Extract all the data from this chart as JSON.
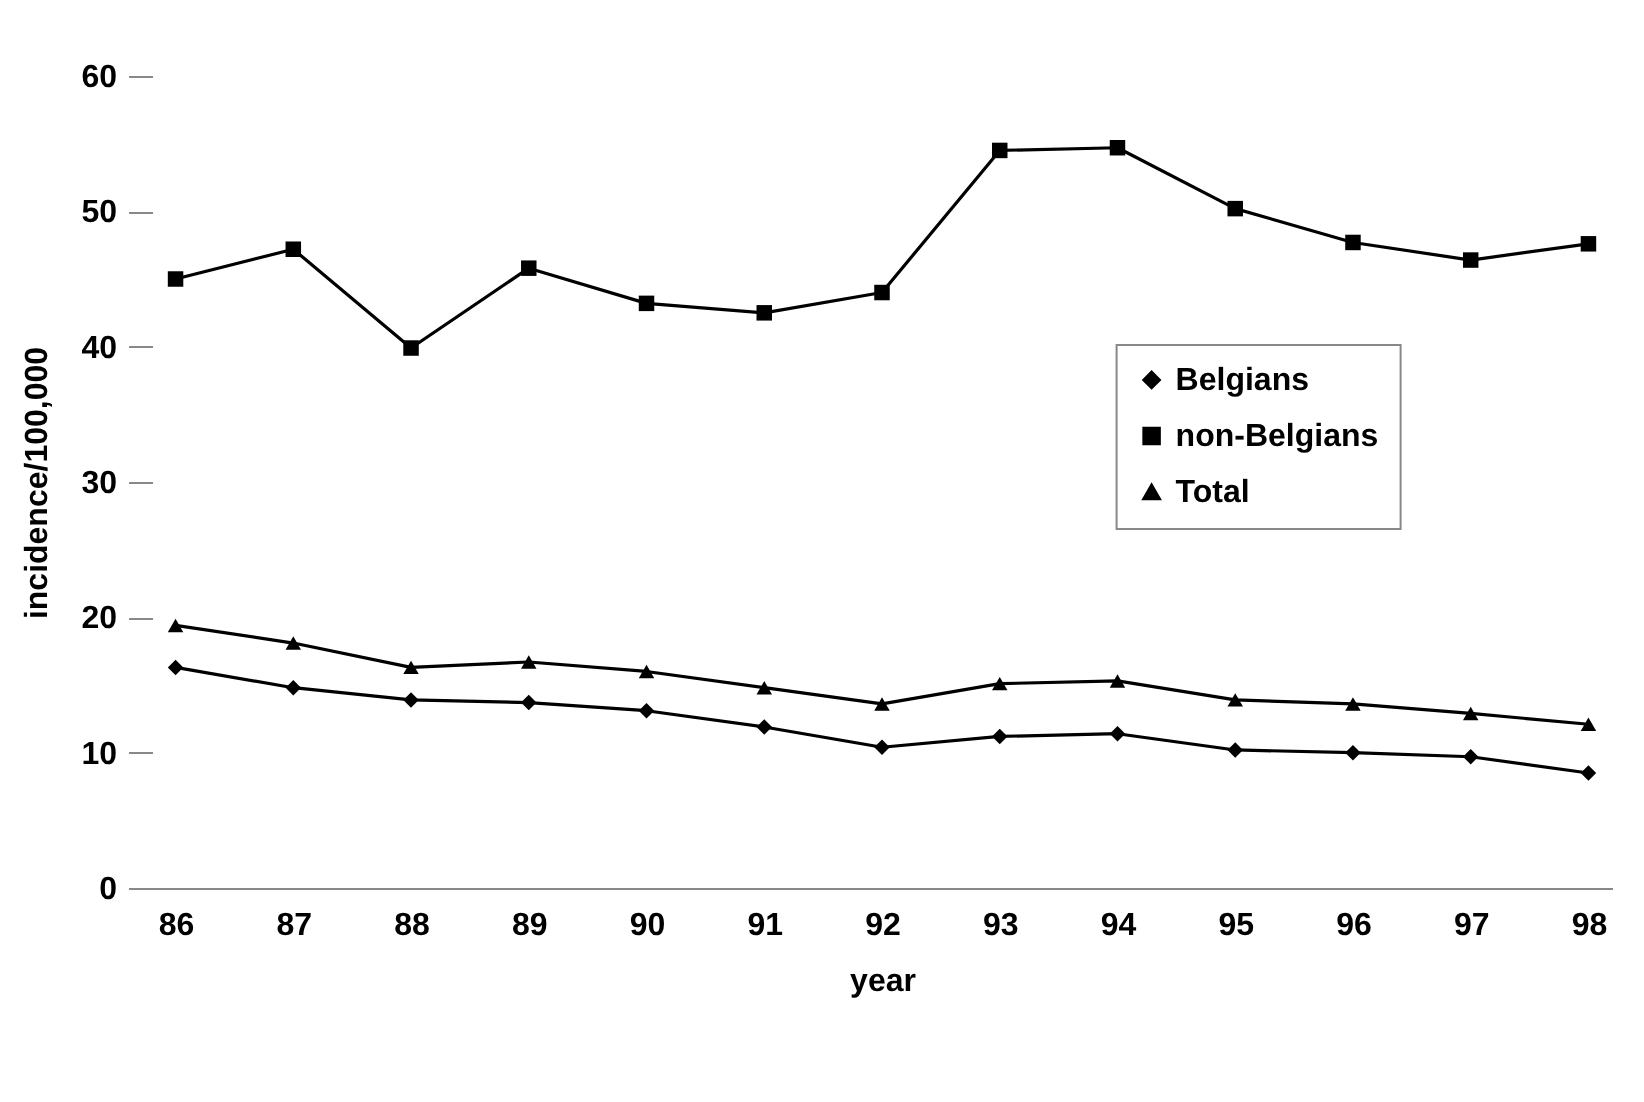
{
  "chart_data": {
    "type": "line",
    "xlabel": "year",
    "ylabel": "incidence/100,000",
    "categories": [
      "86",
      "87",
      "88",
      "89",
      "90",
      "91",
      "92",
      "93",
      "94",
      "95",
      "96",
      "97",
      "98"
    ],
    "series": [
      {
        "name": "Belgians",
        "color": "#000000",
        "marker": "diamond",
        "values": [
          16.3,
          14.8,
          13.9,
          13.7,
          13.1,
          11.9,
          10.4,
          11.2,
          11.4,
          10.2,
          10.0,
          9.7,
          8.5
        ]
      },
      {
        "name": "non-Belgians",
        "color": "#000000",
        "marker": "square",
        "values": [
          45.0,
          47.2,
          39.9,
          45.8,
          43.2,
          42.5,
          44.0,
          54.5,
          54.7,
          50.2,
          47.7,
          46.4,
          47.6
        ]
      },
      {
        "name": "Total",
        "color": "#000000",
        "marker": "triangle",
        "values": [
          19.4,
          18.1,
          16.3,
          16.7,
          16.0,
          14.8,
          13.6,
          15.1,
          15.3,
          13.9,
          13.6,
          12.9,
          12.1
        ]
      }
    ],
    "ylim": [
      0,
      60
    ],
    "yticks": [
      0,
      10,
      20,
      30,
      40,
      50,
      60
    ],
    "grid": false,
    "legend": "right",
    "line_style": "solid"
  }
}
